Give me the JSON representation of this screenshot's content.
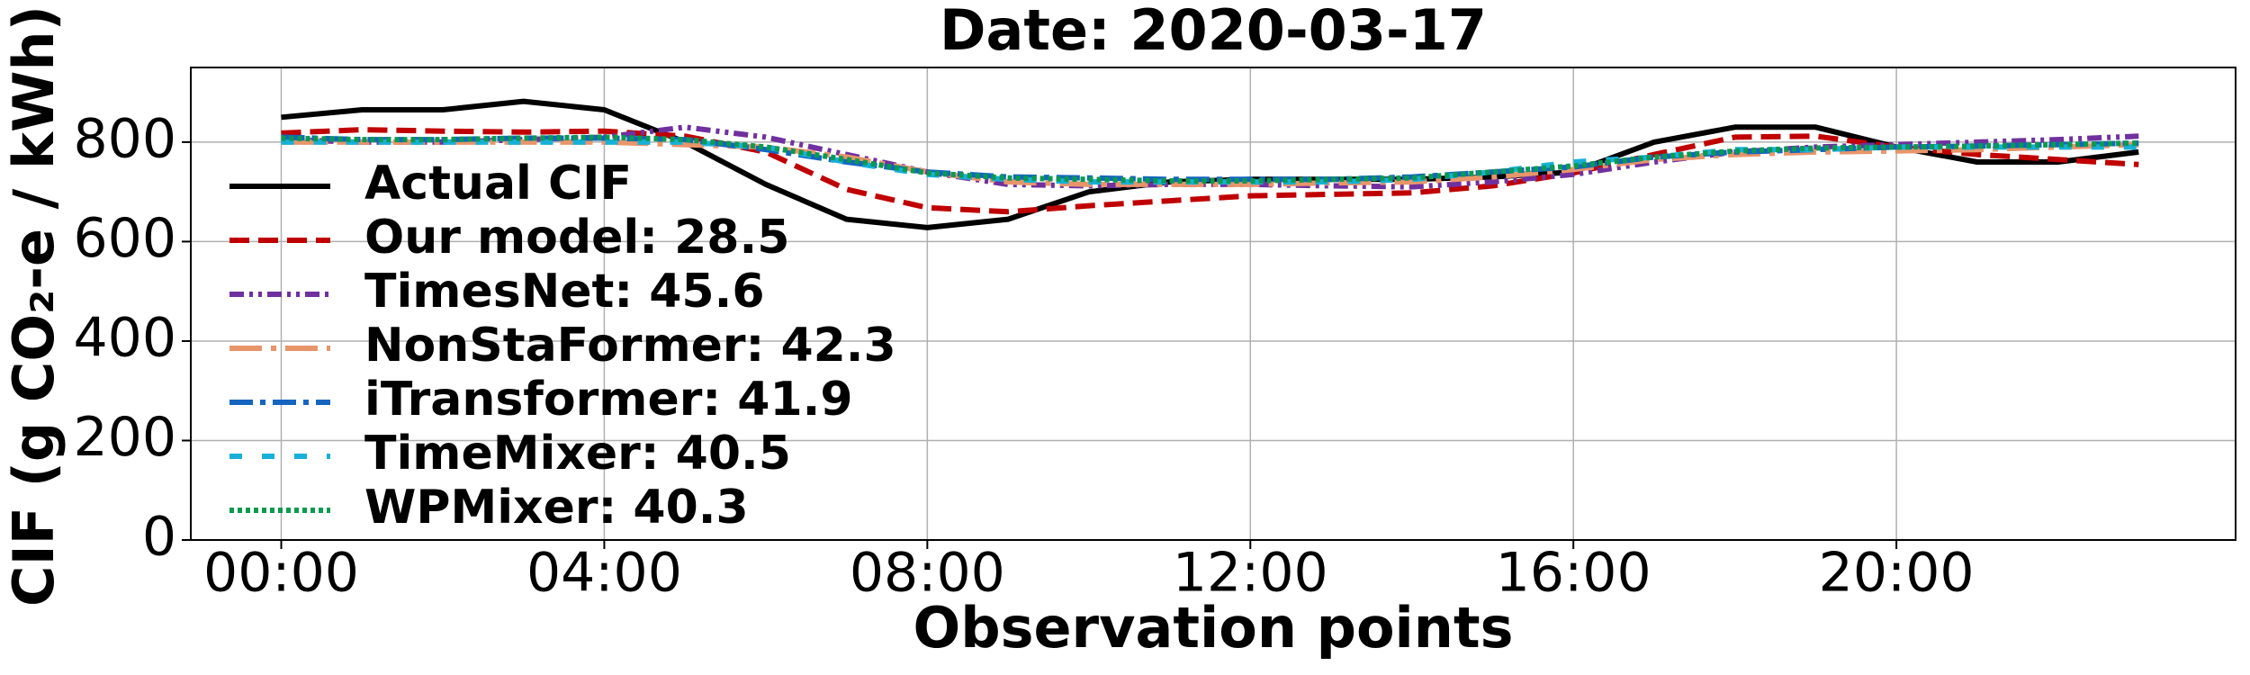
{
  "chart_data": {
    "type": "line",
    "title": "Date: 2020-03-17",
    "xlabel": "Observation points",
    "ylabel": "CIF (g CO₂-e / kWh)",
    "x": [
      0,
      1,
      2,
      3,
      4,
      5,
      6,
      7,
      8,
      9,
      10,
      11,
      12,
      13,
      14,
      15,
      16,
      17,
      18,
      19,
      20,
      21,
      22,
      23
    ],
    "xlim": [
      -1.12,
      24.2
    ],
    "xticks": [
      {
        "value": 0,
        "label": "00:00"
      },
      {
        "value": 4,
        "label": "04:00"
      },
      {
        "value": 8,
        "label": "08:00"
      },
      {
        "value": 12,
        "label": "12:00"
      },
      {
        "value": 16,
        "label": "16:00"
      },
      {
        "value": 20,
        "label": "20:00"
      }
    ],
    "ylim": [
      0,
      950
    ],
    "yticks": [
      0,
      200,
      400,
      600,
      800
    ],
    "grid": true,
    "legend": "left",
    "series": [
      {
        "name": "Actual CIF",
        "color": "#000000",
        "dash": "",
        "values": [
          850,
          865,
          865,
          882,
          865,
          800,
          715,
          645,
          628,
          645,
          700,
          720,
          725,
          725,
          725,
          730,
          740,
          800,
          830,
          830,
          790,
          760,
          760,
          780
        ]
      },
      {
        "name": "Our model: 28.5",
        "color": "#c00000",
        "dash": "22 10",
        "values": [
          818,
          825,
          822,
          820,
          822,
          812,
          780,
          705,
          668,
          660,
          672,
          682,
          692,
          695,
          698,
          712,
          738,
          775,
          810,
          812,
          790,
          775,
          765,
          755
        ]
      },
      {
        "name": "TimesNet: 45.6",
        "color": "#7030a0",
        "dash": "16 6 4 6 4 6",
        "values": [
          805,
          800,
          800,
          805,
          810,
          830,
          810,
          775,
          740,
          715,
          712,
          715,
          715,
          712,
          710,
          720,
          735,
          760,
          780,
          790,
          795,
          800,
          805,
          812
        ]
      },
      {
        "name": "NonStaFormer: 42.3",
        "color": "#e8956a",
        "dash": "36 10 6 10",
        "values": [
          800,
          800,
          800,
          800,
          800,
          795,
          790,
          770,
          740,
          720,
          715,
          715,
          715,
          718,
          720,
          730,
          745,
          765,
          775,
          780,
          782,
          785,
          790,
          795
        ]
      },
      {
        "name": "iTransformer: 41.9",
        "color": "#1565c0",
        "dash": "26 8 6 8",
        "values": [
          810,
          805,
          805,
          808,
          808,
          805,
          785,
          760,
          740,
          730,
          728,
          725,
          725,
          725,
          730,
          740,
          750,
          770,
          780,
          785,
          790,
          792,
          795,
          798
        ]
      },
      {
        "name": "TimeMixer: 40.5",
        "color": "#17b0d8",
        "dash": "14 22",
        "values": [
          800,
          800,
          800,
          800,
          800,
          800,
          790,
          760,
          735,
          725,
          720,
          720,
          720,
          720,
          725,
          740,
          760,
          770,
          785,
          785,
          790,
          790,
          790,
          790
        ]
      },
      {
        "name": "WPMixer: 40.3",
        "color": "#0a9a50",
        "dash": "5 4",
        "values": [
          808,
          805,
          805,
          808,
          810,
          805,
          790,
          765,
          738,
          728,
          725,
          722,
          722,
          725,
          728,
          740,
          752,
          770,
          782,
          788,
          790,
          792,
          795,
          798
        ]
      }
    ]
  }
}
